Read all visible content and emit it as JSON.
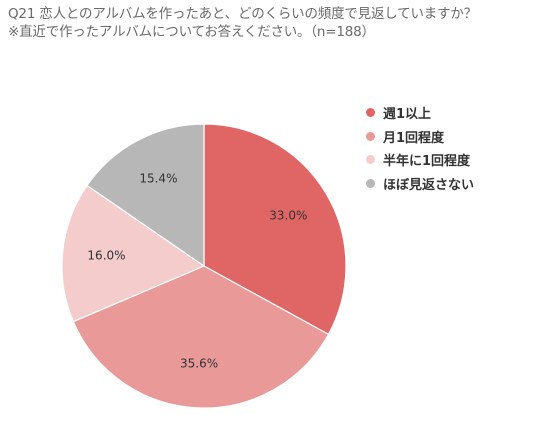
{
  "chart_data": {
    "type": "pie",
    "title_lines": [
      "Q21 恋人とのアルバムを作ったあと、どのくらいの頻度で見返していますか？",
      "※直近で作ったアルバムについてお答えください。（n=188）"
    ],
    "slices": [
      {
        "label": "週1以上",
        "value": 33.0,
        "display": "33.0%",
        "color": "#e06666"
      },
      {
        "label": "月1回程度",
        "value": 35.6,
        "display": "35.6%",
        "color": "#ea9999"
      },
      {
        "label": "半年に1回程度",
        "value": 16.0,
        "display": "16.0%",
        "color": "#f4cccc"
      },
      {
        "label": "ほぼ見返さない",
        "value": 15.4,
        "display": "15.4%",
        "color": "#b7b7b7"
      }
    ],
    "legend_position": "right"
  }
}
